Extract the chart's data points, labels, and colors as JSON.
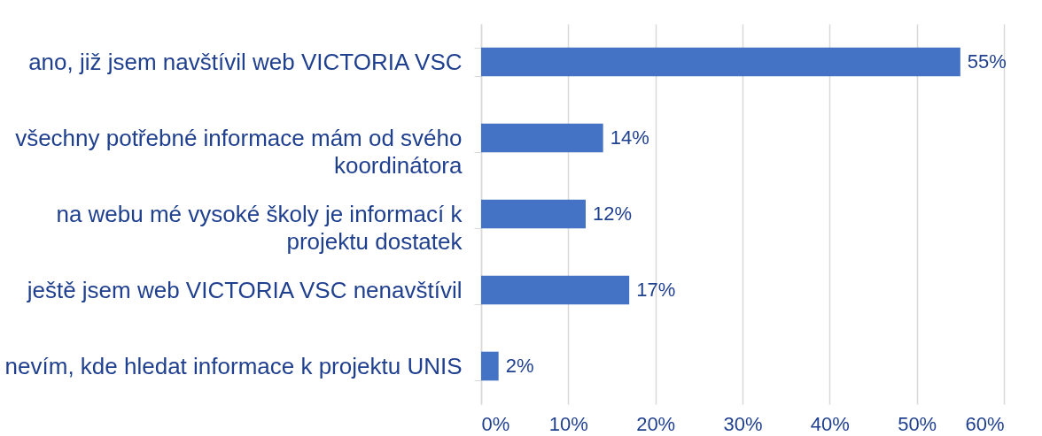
{
  "chart_data": {
    "type": "bar",
    "orientation": "horizontal",
    "categories": [
      "ano, již jsem navštívil web VICTORIA VSC",
      "všechny potřebné informace mám od svého koordinátora",
      "na webu mé vysoké školy je informací k projektu dostatek",
      "ještě jsem web VICTORIA VSC nenavštívil",
      "nevím, kde hledat informace k projektu UNIS"
    ],
    "values": [
      55,
      14,
      12,
      17,
      2
    ],
    "value_labels": [
      "55%",
      "14%",
      "12%",
      "17%",
      "2%"
    ],
    "color": "#4472c4",
    "xlim": [
      0,
      60
    ],
    "xticks": [
      {
        "value": 0,
        "label": "0%"
      },
      {
        "value": 10,
        "label": "10%"
      },
      {
        "value": 20,
        "label": "20%"
      },
      {
        "value": 30,
        "label": "30%"
      },
      {
        "value": 40,
        "label": "40%"
      },
      {
        "value": 50,
        "label": "50%"
      },
      {
        "value": 60,
        "label": "60%"
      }
    ],
    "grid": "x"
  }
}
